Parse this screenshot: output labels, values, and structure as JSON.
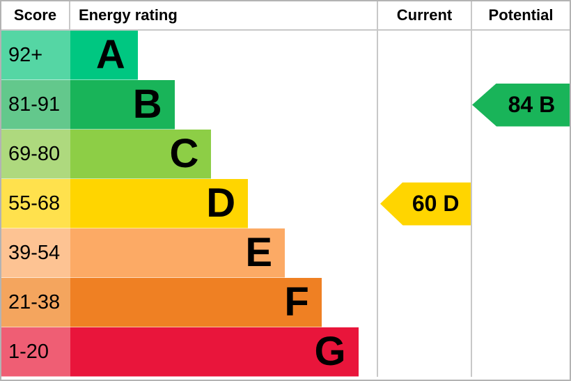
{
  "header": {
    "score": "Score",
    "energy_rating": "Energy rating",
    "current": "Current",
    "potential": "Potential"
  },
  "bands": [
    {
      "letter": "A",
      "score_range": "92+",
      "color": "#00c781",
      "score_color": "#55d6a4",
      "width_pct": 22
    },
    {
      "letter": "B",
      "score_range": "81-91",
      "color": "#19b459",
      "score_color": "#63c88c",
      "width_pct": 34
    },
    {
      "letter": "C",
      "score_range": "69-80",
      "color": "#8dce46",
      "score_color": "#aed97e",
      "width_pct": 46
    },
    {
      "letter": "D",
      "score_range": "55-68",
      "color": "#ffd500",
      "score_color": "#ffe14d",
      "width_pct": 58
    },
    {
      "letter": "E",
      "score_range": "39-54",
      "color": "#fcaa65",
      "score_color": "#fdc393",
      "width_pct": 70
    },
    {
      "letter": "F",
      "score_range": "21-38",
      "color": "#ef8023",
      "score_color": "#f4a55e",
      "width_pct": 82
    },
    {
      "letter": "G",
      "score_range": "1-20",
      "color": "#e9153b",
      "score_color": "#ef5e74",
      "width_pct": 94
    }
  ],
  "current": {
    "label": "60 D",
    "value": 60,
    "band": "D",
    "color": "#ffd500"
  },
  "potential": {
    "label": "84 B",
    "value": 84,
    "band": "B",
    "color": "#19b459"
  },
  "chart_data": {
    "type": "bar",
    "title": "Energy rating",
    "columns": [
      "Score",
      "Energy rating",
      "Current",
      "Potential"
    ],
    "categories": [
      "A",
      "B",
      "C",
      "D",
      "E",
      "F",
      "G"
    ],
    "score_ranges": [
      "92+",
      "81-91",
      "69-80",
      "55-68",
      "39-54",
      "21-38",
      "1-20"
    ],
    "bar_lengths_pct_of_track": [
      22,
      34,
      46,
      58,
      70,
      82,
      94
    ],
    "band_colors": [
      "#00c781",
      "#19b459",
      "#8dce46",
      "#ffd500",
      "#fcaa65",
      "#ef8023",
      "#e9153b"
    ],
    "current": {
      "score": 60,
      "band": "D"
    },
    "potential": {
      "score": 84,
      "band": "B"
    },
    "legend_position": "none",
    "grid": false
  }
}
